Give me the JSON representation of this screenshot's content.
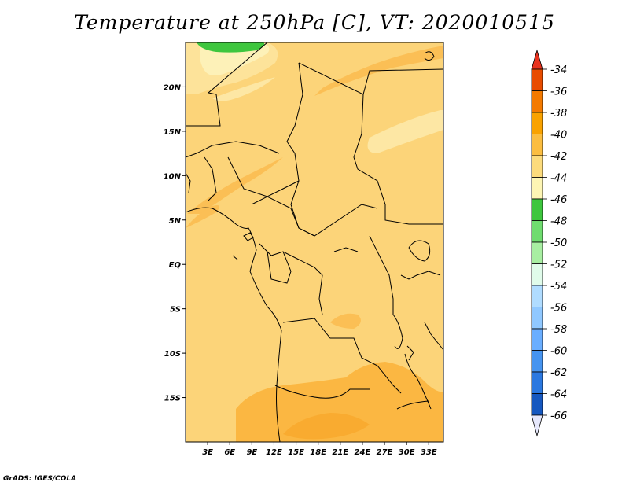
{
  "title": "Temperature at 250hPa [C], VT: 2020010515",
  "credit": "GrADS: IGES/COLA",
  "map": {
    "lon_range": [
      0,
      35
    ],
    "lat_range": [
      -20,
      25
    ],
    "lat_labels": [
      {
        "lat": 20,
        "text": "20N"
      },
      {
        "lat": 15,
        "text": "15N"
      },
      {
        "lat": 10,
        "text": "10N"
      },
      {
        "lat": 5,
        "text": "5N"
      },
      {
        "lat": 0,
        "text": "EQ"
      },
      {
        "lat": -5,
        "text": "5S"
      },
      {
        "lat": -10,
        "text": "10S"
      },
      {
        "lat": -15,
        "text": "15S"
      }
    ],
    "lon_labels": [
      {
        "lon": 3,
        "text": "3E"
      },
      {
        "lon": 6,
        "text": "6E"
      },
      {
        "lon": 9,
        "text": "9E"
      },
      {
        "lon": 12,
        "text": "12E"
      },
      {
        "lon": 15,
        "text": "15E"
      },
      {
        "lon": 18,
        "text": "18E"
      },
      {
        "lon": 21,
        "text": "21E"
      },
      {
        "lon": 24,
        "text": "24E"
      },
      {
        "lon": 27,
        "text": "27E"
      },
      {
        "lon": 30,
        "text": "30E"
      },
      {
        "lon": 33,
        "text": "33E"
      }
    ]
  },
  "colorbar": {
    "levels": [
      {
        "label": "-34",
        "color": "#e84c00"
      },
      {
        "label": "-36",
        "color": "#f47a00"
      },
      {
        "label": "-38",
        "color": "#f9a200"
      },
      {
        "label": "-40",
        "color": "#fbbd40"
      },
      {
        "label": "-42",
        "color": "#fcdb7c"
      },
      {
        "label": "-44",
        "color": "#fdf5b4"
      },
      {
        "label": "-46",
        "color": "#3ec63e"
      },
      {
        "label": "-48",
        "color": "#6fdc6f"
      },
      {
        "label": "-50",
        "color": "#a8eea2"
      },
      {
        "label": "-52",
        "color": "#e0fbea"
      },
      {
        "label": "-54",
        "color": "#b0dcff"
      },
      {
        "label": "-56",
        "color": "#90c8ff"
      },
      {
        "label": "-58",
        "color": "#6aaeff"
      },
      {
        "label": "-60",
        "color": "#4694f0"
      },
      {
        "label": "-62",
        "color": "#2b78e0"
      },
      {
        "label": "-64",
        "color": "#1658c0"
      },
      {
        "label": "-66",
        "color": "#0b2e8c"
      }
    ],
    "top_arrow_color": "#e8321e",
    "bottom_arrow_color": "#e6e8fc"
  }
}
